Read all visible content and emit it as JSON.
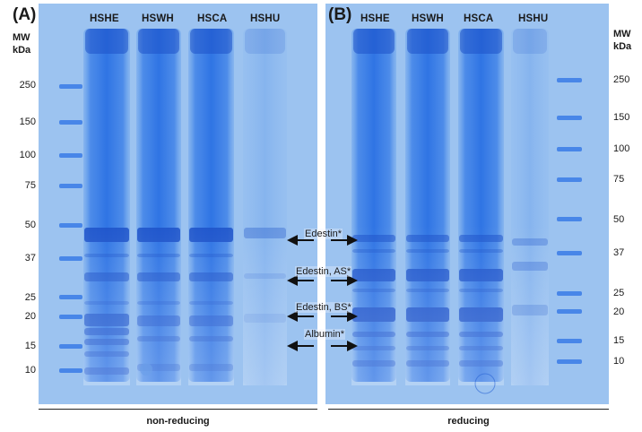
{
  "panels": [
    {
      "label": "(A)",
      "lanes": [
        "HSHE",
        "HSWH",
        "HSCA",
        "HSHU"
      ],
      "condition": "non-reducing",
      "mw_header": [
        "MW",
        "kDa"
      ],
      "mw_markers": [
        "250",
        "150",
        "100",
        "75",
        "50",
        "37",
        "25",
        "20",
        "15",
        "10"
      ]
    },
    {
      "label": "(B)",
      "lanes": [
        "HSHE",
        "HSWH",
        "HSCA",
        "HSHU"
      ],
      "condition": "reducing",
      "mw_header": [
        "MW",
        "kDa"
      ],
      "mw_markers": [
        "250",
        "150",
        "100",
        "75",
        "50",
        "37",
        "25",
        "20",
        "15",
        "10"
      ]
    }
  ],
  "annotations": [
    "Edestin*",
    "Edestin, AS*",
    "Edestin, BS*",
    "Albumin*"
  ],
  "colors": {
    "gel_background": "#9cc3f0",
    "band": "#2f6fe0",
    "band_dark": "#1d52c9",
    "ladder": "#3a7be6",
    "text": "#1a1a1a"
  }
}
